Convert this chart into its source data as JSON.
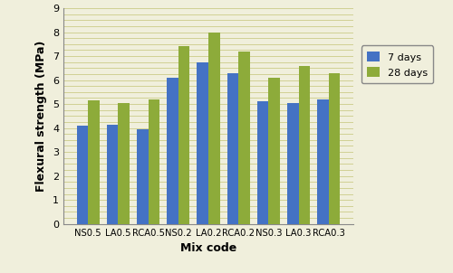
{
  "categories": [
    "NS0.5",
    "LA0.5",
    "RCA0.5",
    "NS0.2",
    "LA0.2",
    "RCA0.2",
    "NS0.3",
    "LA0.3",
    "RCA0.3"
  ],
  "values_7days": [
    4.1,
    4.15,
    3.95,
    6.1,
    6.75,
    6.3,
    5.1,
    5.05,
    5.2
  ],
  "values_28days": [
    5.15,
    5.05,
    5.2,
    7.4,
    8.0,
    7.2,
    6.1,
    6.6,
    6.3
  ],
  "color_7days": "#4472C4",
  "color_28days": "#8DAB3A",
  "xlabel": "Mix code",
  "ylabel": "Flexural strength (MPa)",
  "ylim": [
    0,
    9
  ],
  "yticks": [
    0,
    1,
    2,
    3,
    4,
    5,
    6,
    7,
    8,
    9
  ],
  "legend_7days": "7 days",
  "legend_28days": "28 days",
  "bar_width": 0.38,
  "grid_color": "#CCCC88",
  "background_color": "#F0EFDC",
  "plot_background": "#F0EFDC"
}
